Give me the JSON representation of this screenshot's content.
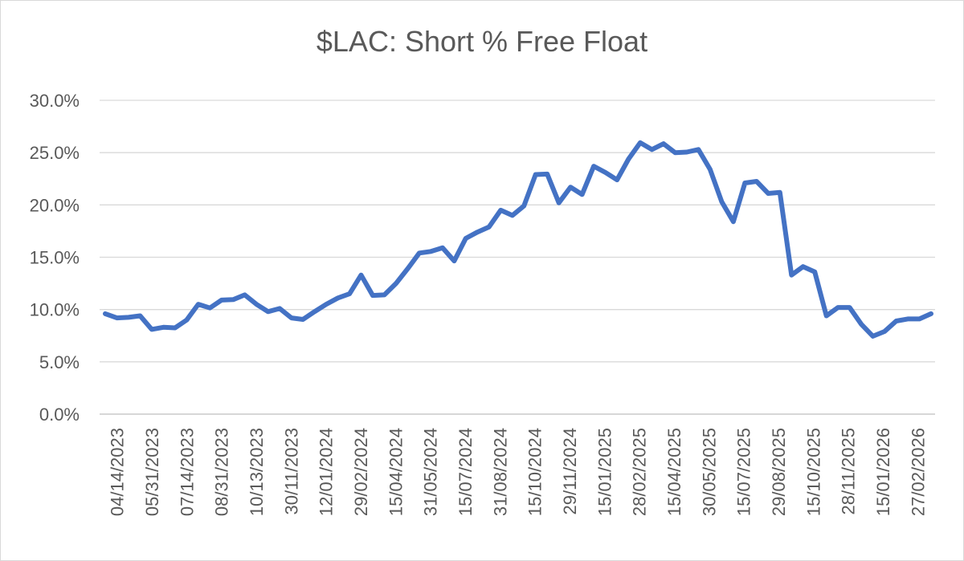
{
  "chart_data": {
    "type": "line",
    "title": "$LAC: Short % Free Float",
    "xlabel": "",
    "ylabel": "",
    "ylim": [
      0,
      30
    ],
    "y_ticks": [
      "0.0%",
      "5.0%",
      "10.0%",
      "15.0%",
      "20.0%",
      "25.0%",
      "30.0%"
    ],
    "x_tick_labels": [
      "04/14/2023",
      "05/31/2023",
      "07/14/2023",
      "08/31/2023",
      "10/13/2023",
      "30/11/2023",
      "12/01/2024",
      "29/02/2024",
      "15/04/2024",
      "31/05/2024",
      "15/07/2024",
      "31/08/2024",
      "15/10/2024",
      "29/11/2024",
      "15/01/2025",
      "28/02/2025",
      "15/04/2025",
      "30/05/2025",
      "15/07/2025",
      "29/08/2025",
      "15/10/2025",
      "28/11/2025",
      "15/01/2026",
      "27/02/2026"
    ],
    "grid": true,
    "legend": "none",
    "color": "#4472C4",
    "series": [
      {
        "values": [
          9.6,
          9.2,
          9.25,
          9.4,
          8.1,
          8.3,
          8.25,
          9.0,
          10.5,
          10.15,
          10.9,
          10.95,
          11.4,
          10.5,
          9.8,
          10.1,
          9.2,
          9.05,
          9.8,
          10.5,
          11.1,
          11.5,
          13.3,
          11.35,
          11.4,
          12.5,
          13.9,
          15.4,
          15.55,
          15.9,
          14.65,
          16.8,
          17.4,
          17.9,
          19.5,
          19.0,
          19.9,
          22.9,
          22.95,
          20.2,
          21.7,
          21.0,
          23.7,
          23.1,
          22.4,
          24.4,
          25.95,
          25.3,
          25.85,
          25.0,
          25.05,
          25.3,
          23.4,
          20.3,
          18.4,
          22.1,
          22.25,
          21.1,
          21.2,
          13.3,
          14.1,
          13.6,
          9.4,
          10.2,
          10.2,
          8.6,
          7.45,
          7.9,
          8.9,
          9.1,
          9.1,
          9.6
        ]
      }
    ]
  }
}
